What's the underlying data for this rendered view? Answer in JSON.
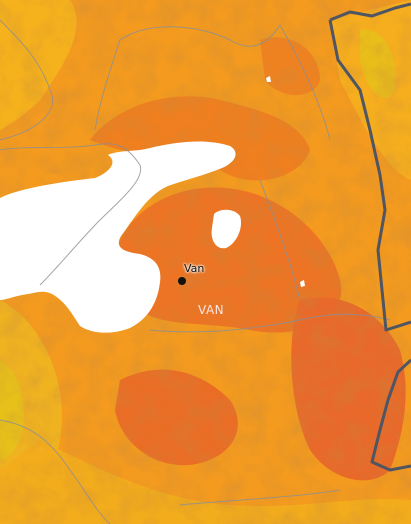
{
  "map": {
    "city": {
      "name": "Van",
      "marker_color": "#111111"
    },
    "province": {
      "name": "VAN"
    },
    "colors": {
      "base": "#f39a1f",
      "warm": "#ef7f1f",
      "hot": "#e8692a",
      "cool": "#f6b21c",
      "yellow": "#e7c11a",
      "water": "#ffffff",
      "border": "#4f5563",
      "roads": "#8a8f96"
    }
  }
}
